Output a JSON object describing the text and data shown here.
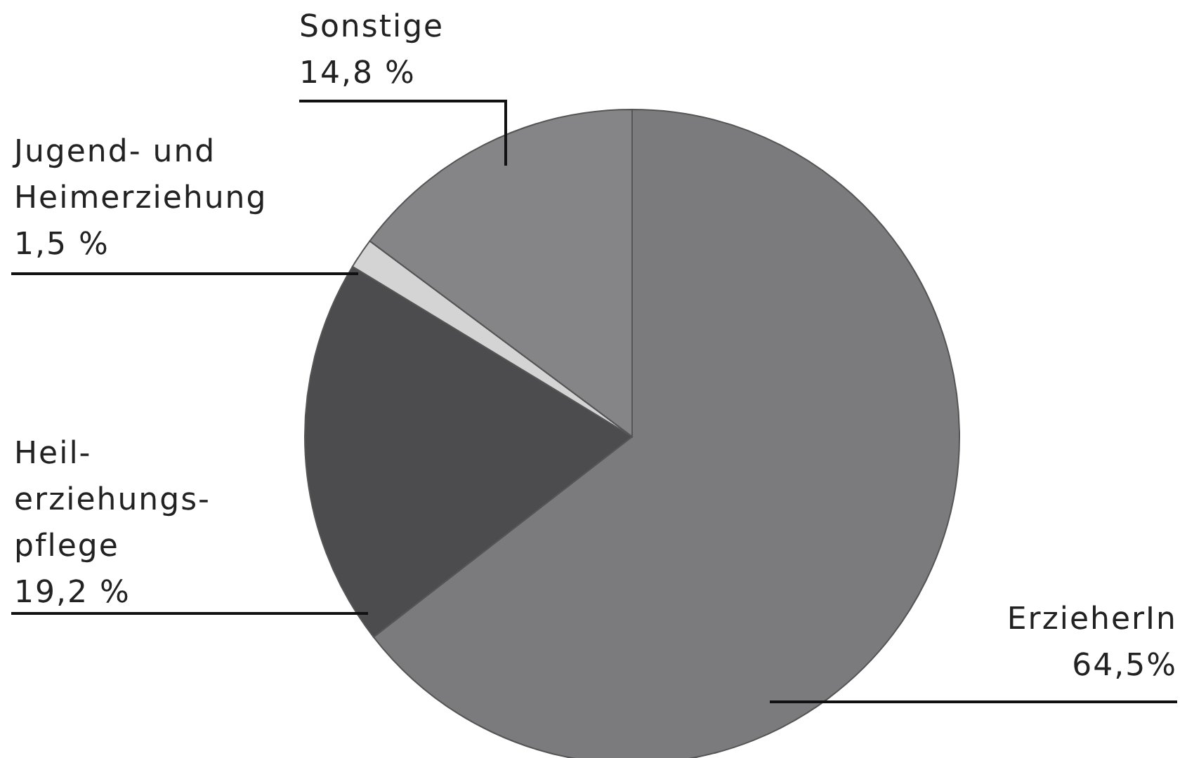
{
  "chart_data": {
    "type": "pie",
    "categories": [
      "ErzieherIn",
      "Heil-\nerziehungs-\npflege",
      "Jugend- und\nHeimerziehung",
      "Sonstige"
    ],
    "values": [
      64.5,
      19.2,
      1.5,
      14.8
    ],
    "colors": [
      "#7b7b7d",
      "#4c4c4e",
      "#d4d4d4",
      "#858587"
    ],
    "value_labels": [
      "64,5%",
      "19,2 %",
      "1,5 %",
      "14,8 %"
    ],
    "legend": false
  }
}
